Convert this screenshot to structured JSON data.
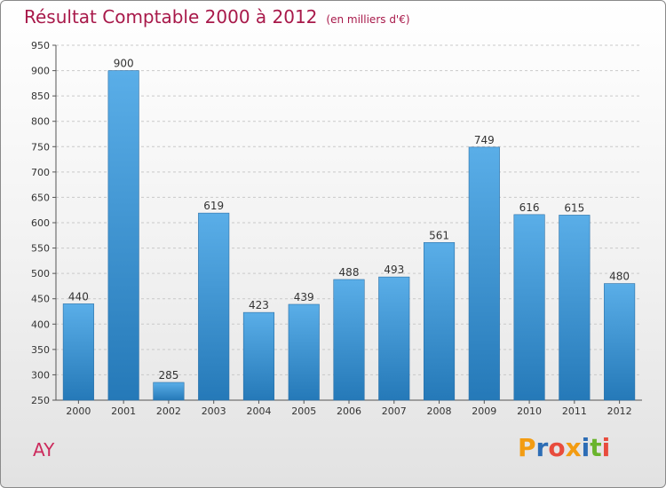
{
  "header": {
    "title": "Résultat Comptable 2000 à 2012",
    "unit": "(en milliers d'€)"
  },
  "footer": {
    "commune": "AY",
    "logo_text": "Proxiti"
  },
  "colors": {
    "title": "#a8194a",
    "bar_top": "#5aaee8",
    "bar_bottom": "#2579b8"
  },
  "chart_data": {
    "type": "bar",
    "title": "Résultat Comptable 2000 à 2012",
    "subtitle": "(en milliers d'€)",
    "xlabel": "",
    "ylabel": "",
    "categories": [
      "2000",
      "2001",
      "2002",
      "2003",
      "2004",
      "2005",
      "2006",
      "2007",
      "2008",
      "2009",
      "2010",
      "2011",
      "2012"
    ],
    "values": [
      440,
      900,
      285,
      619,
      423,
      439,
      488,
      493,
      561,
      749,
      616,
      615,
      480
    ],
    "ylim": [
      250,
      950
    ],
    "yticks": [
      250,
      300,
      350,
      400,
      450,
      500,
      550,
      600,
      650,
      700,
      750,
      800,
      850,
      900,
      950
    ],
    "grid": true,
    "data_labels": true
  }
}
